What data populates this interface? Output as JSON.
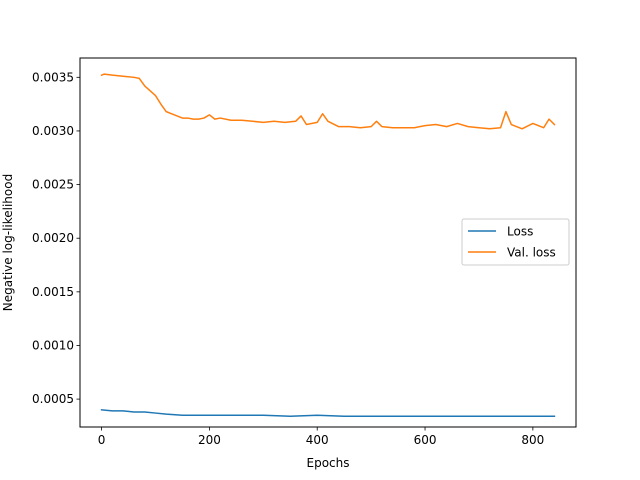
{
  "chart_data": {
    "type": "line",
    "title": "",
    "xlabel": "Epochs",
    "ylabel": "Negative log-likelihood",
    "xlim": [
      -40,
      880
    ],
    "ylim": [
      0.00024,
      0.00368
    ],
    "xticks": [
      0,
      200,
      400,
      600,
      800
    ],
    "xtick_labels": [
      "0",
      "200",
      "400",
      "600",
      "800"
    ],
    "yticks": [
      0.0005,
      0.001,
      0.0015,
      0.002,
      0.0025,
      0.003,
      0.0035
    ],
    "ytick_labels": [
      "0.0005",
      "0.0010",
      "0.0015",
      "0.0020",
      "0.0025",
      "0.0030",
      "0.0035"
    ],
    "grid": false,
    "legend_position": "center-right",
    "series": [
      {
        "name": "Loss",
        "color": "#1f77b4",
        "x": [
          0,
          20,
          40,
          60,
          80,
          100,
          120,
          150,
          200,
          250,
          300,
          350,
          400,
          450,
          500,
          550,
          600,
          650,
          700,
          750,
          800,
          840
        ],
        "values": [
          0.0004,
          0.00039,
          0.00039,
          0.00038,
          0.00038,
          0.00037,
          0.00036,
          0.00035,
          0.00035,
          0.00035,
          0.00035,
          0.00034,
          0.00035,
          0.00034,
          0.00034,
          0.00034,
          0.00034,
          0.00034,
          0.00034,
          0.00034,
          0.00034,
          0.00034
        ]
      },
      {
        "name": "Val. loss",
        "color": "#ff7f0e",
        "x": [
          0,
          5,
          20,
          40,
          60,
          70,
          80,
          100,
          110,
          120,
          130,
          140,
          150,
          160,
          170,
          180,
          190,
          200,
          210,
          220,
          240,
          260,
          280,
          300,
          320,
          340,
          360,
          370,
          380,
          400,
          410,
          420,
          440,
          460,
          480,
          500,
          510,
          520,
          540,
          560,
          580,
          600,
          620,
          640,
          660,
          680,
          700,
          720,
          740,
          750,
          760,
          780,
          800,
          820,
          830,
          840
        ],
        "values": [
          0.00352,
          0.00353,
          0.00352,
          0.00351,
          0.0035,
          0.00349,
          0.00342,
          0.00333,
          0.00325,
          0.00318,
          0.00316,
          0.00314,
          0.00312,
          0.00312,
          0.00311,
          0.00311,
          0.00312,
          0.00315,
          0.00311,
          0.00312,
          0.0031,
          0.0031,
          0.00309,
          0.00308,
          0.00309,
          0.00308,
          0.00309,
          0.00314,
          0.00306,
          0.00308,
          0.00316,
          0.00309,
          0.00304,
          0.00304,
          0.00303,
          0.00304,
          0.00309,
          0.00304,
          0.00303,
          0.00303,
          0.00303,
          0.00305,
          0.00306,
          0.00304,
          0.00307,
          0.00304,
          0.00303,
          0.00302,
          0.00303,
          0.00318,
          0.00306,
          0.00302,
          0.00307,
          0.00303,
          0.00311,
          0.00306
        ]
      }
    ]
  }
}
